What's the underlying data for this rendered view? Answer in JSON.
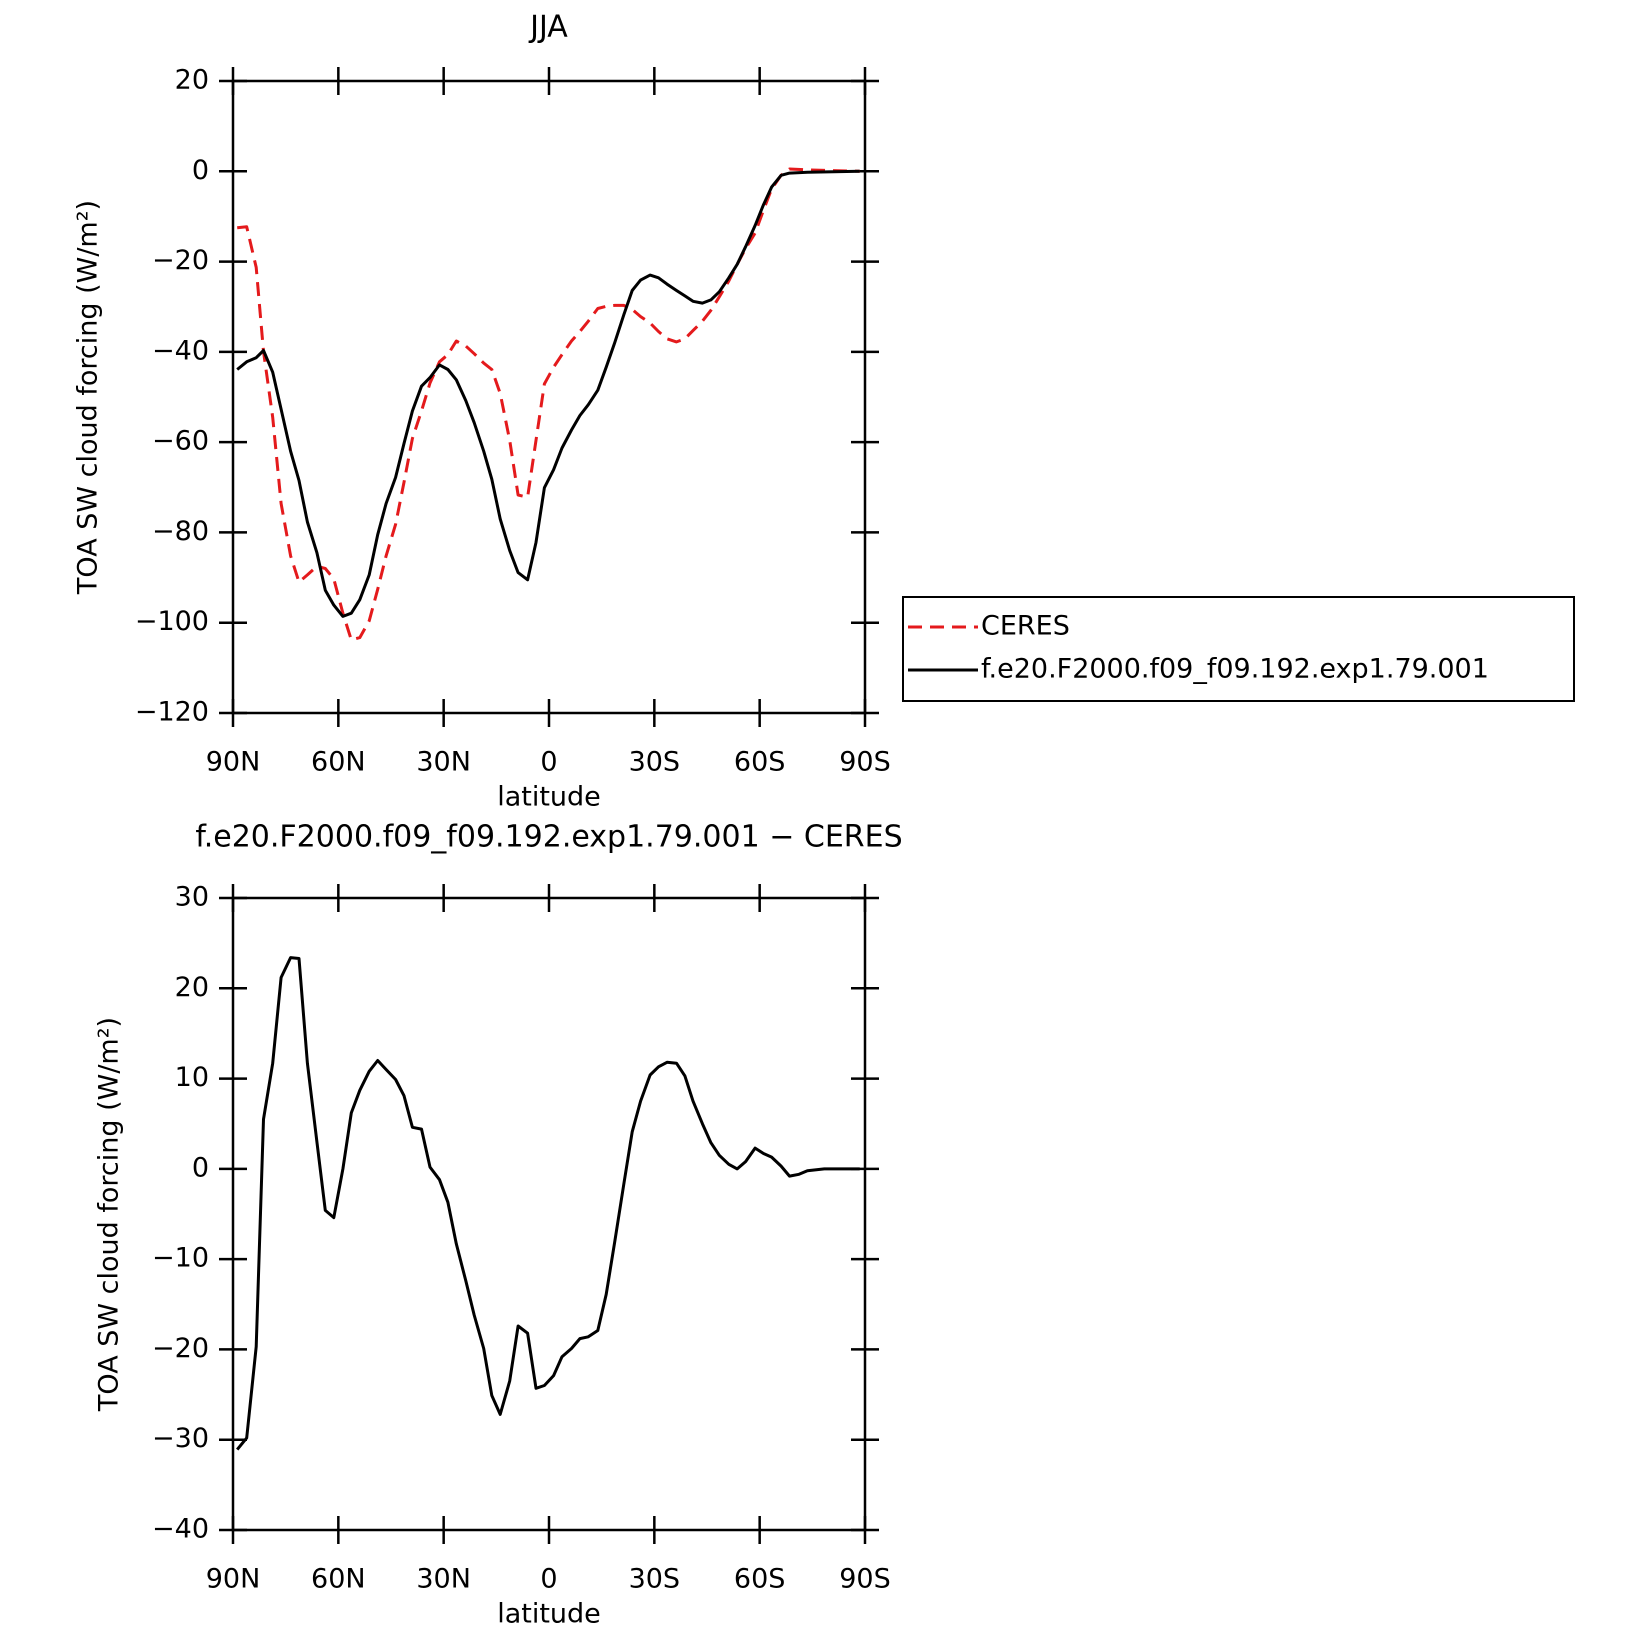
{
  "chart_data": [
    {
      "type": "line",
      "title": "JJA",
      "xlabel": "latitude",
      "ylabel": "TOA SW cloud forcing (W/m²)",
      "x": [
        88.8,
        86.1,
        83.4,
        81.3,
        78.7,
        76.3,
        73.6,
        71.2,
        68.8,
        66.1,
        63.7,
        61.3,
        58.7,
        56.3,
        53.9,
        51.2,
        48.8,
        46.4,
        43.7,
        41.3,
        38.9,
        36.3,
        33.9,
        31.2,
        28.8,
        26.4,
        23.7,
        21.3,
        18.6,
        16.3,
        13.9,
        11.2,
        8.8,
        6.1,
        3.7,
        1.3,
        -1.3,
        -3.7,
        -6.4,
        -8.8,
        -11.2,
        -13.9,
        -16.3,
        -18.7,
        -21.3,
        -23.7,
        -26.1,
        -28.8,
        -31.2,
        -33.6,
        -36.3,
        -38.7,
        -41,
        -43.7,
        -46.1,
        -48.5,
        -51.2,
        -53.6,
        -56,
        -58.7,
        -61.1,
        -63.4,
        -66.1,
        -68.5,
        -73.6,
        -88.5
      ],
      "series": [
        {
          "name": "CERES",
          "color": "#e41a1c",
          "dash": true,
          "values": [
            -12.5,
            -12.3,
            -21.3,
            -39.9,
            -54.5,
            -73.6,
            -85.2,
            -91,
            -89.4,
            -87.5,
            -88,
            -90.3,
            -97.9,
            -103.8,
            -103.3,
            -99.6,
            -92.6,
            -85.2,
            -78.2,
            -68.9,
            -59.2,
            -53.1,
            -46.9,
            -42.2,
            -40.6,
            -37.6,
            -38.7,
            -40.4,
            -42.5,
            -43.9,
            -49.2,
            -59.6,
            -71.7,
            -72.2,
            -59.6,
            -47.1,
            -43.4,
            -40.6,
            -37.6,
            -35.5,
            -33.2,
            -30.4,
            -29.9,
            -29.7,
            -29.7,
            -30.6,
            -32.2,
            -33.6,
            -35.5,
            -37.1,
            -37.8,
            -37.1,
            -35.3,
            -33.2,
            -30.8,
            -27.8,
            -24.3,
            -20.6,
            -17.1,
            -13.7,
            -8.6,
            -3.9,
            -0.9,
            0.5,
            0.3,
            0
          ]
        },
        {
          "name": "f.e20.F2000.f09_f09.192.exp1.79.001",
          "color": "#000000",
          "dash": false,
          "values": [
            -43.9,
            -42.2,
            -41.3,
            -39.7,
            -44.5,
            -52.7,
            -62,
            -68.5,
            -77.7,
            -84.5,
            -92.8,
            -96.1,
            -98.6,
            -97.9,
            -94.9,
            -89.4,
            -80.5,
            -73.6,
            -67.8,
            -60.3,
            -53.1,
            -47.6,
            -45.7,
            -42.9,
            -43.9,
            -46.2,
            -50.8,
            -55.7,
            -62,
            -68.2,
            -77,
            -84,
            -88.9,
            -90.5,
            -82.2,
            -70.1,
            -66.1,
            -61.3,
            -57.3,
            -54.1,
            -51.7,
            -48.5,
            -43.4,
            -38,
            -31.8,
            -26.4,
            -24.1,
            -23,
            -23.6,
            -25,
            -26.4,
            -27.6,
            -28.8,
            -29.2,
            -28.5,
            -26.7,
            -23.6,
            -20.6,
            -16.7,
            -12,
            -7.4,
            -3.5,
            -0.9,
            -0.4,
            -0.2,
            0
          ]
        }
      ],
      "xlim": [
        90,
        -90
      ],
      "xticks": [
        {
          "value": 90,
          "label": "90N"
        },
        {
          "value": 60,
          "label": "60N"
        },
        {
          "value": 30,
          "label": "30N"
        },
        0,
        {
          "value": -30,
          "label": "30S"
        },
        {
          "value": -60,
          "label": "60S"
        },
        {
          "value": -90,
          "label": "90S"
        }
      ],
      "ylim": [
        -120,
        20
      ],
      "yticks": [
        -120,
        -100,
        -80,
        -60,
        -40,
        -20,
        0,
        20
      ],
      "legend": "right"
    },
    {
      "type": "line",
      "title": "f.e20.F2000.f09_f09.192.exp1.79.001 − CERES",
      "xlabel": "latitude",
      "ylabel": "TOA SW cloud forcing (W/m²)",
      "x": [
        88.8,
        86.1,
        83.4,
        81.3,
        78.7,
        76.3,
        73.6,
        71.2,
        68.8,
        66.1,
        63.7,
        61.3,
        58.7,
        56.3,
        53.9,
        51.2,
        48.8,
        46.4,
        43.7,
        41.3,
        38.9,
        36.3,
        33.9,
        31.2,
        28.8,
        26.4,
        23.7,
        21.3,
        18.6,
        16.3,
        13.9,
        11.2,
        8.8,
        6.1,
        3.7,
        1.3,
        -1.3,
        -3.7,
        -6.4,
        -8.8,
        -11.2,
        -13.9,
        -16.3,
        -18.7,
        -21.3,
        -23.7,
        -26.1,
        -28.8,
        -31.2,
        -33.6,
        -36.3,
        -38.7,
        -41,
        -43.7,
        -46.1,
        -48.5,
        -51.2,
        -53.6,
        -56,
        -58.7,
        -61.1,
        -63.4,
        -66.1,
        -68.5,
        -71.2,
        -73.6,
        -78.4,
        -88.5
      ],
      "series": [
        {
          "color": "#000000",
          "dash": false,
          "values": [
            -31.1,
            -29.8,
            -19.7,
            5.5,
            11.7,
            21.2,
            23.4,
            23.3,
            11.7,
            3,
            -4.6,
            -5.4,
            0,
            6.2,
            8.7,
            10.8,
            12,
            11,
            9.9,
            8.1,
            4.6,
            4.4,
            0.2,
            -1.2,
            -3.7,
            -8.3,
            -12.4,
            -16.2,
            -19.9,
            -25.1,
            -27.2,
            -23.5,
            -17.4,
            -18.2,
            -24.3,
            -24,
            -22.9,
            -20.8,
            -19.9,
            -18.8,
            -18.6,
            -17.9,
            -13.9,
            -8.1,
            -1.7,
            4.1,
            7.5,
            10.4,
            11.3,
            11.8,
            11.7,
            10.3,
            7.5,
            5,
            2.9,
            1.5,
            0.5,
            0,
            0.8,
            2.3,
            1.7,
            1.3,
            0.3,
            -0.8,
            -0.6,
            -0.2,
            0,
            0
          ]
        }
      ],
      "xlim": [
        90,
        -90
      ],
      "xticks": [
        {
          "value": 90,
          "label": "90N"
        },
        {
          "value": 60,
          "label": "60N"
        },
        {
          "value": 30,
          "label": "30N"
        },
        0,
        {
          "value": -30,
          "label": "30S"
        },
        {
          "value": -60,
          "label": "60S"
        },
        {
          "value": -90,
          "label": "90S"
        }
      ],
      "ylim": [
        -40,
        30
      ],
      "yticks": [
        -40,
        -30,
        -20,
        -10,
        0,
        10,
        20,
        30
      ]
    }
  ]
}
